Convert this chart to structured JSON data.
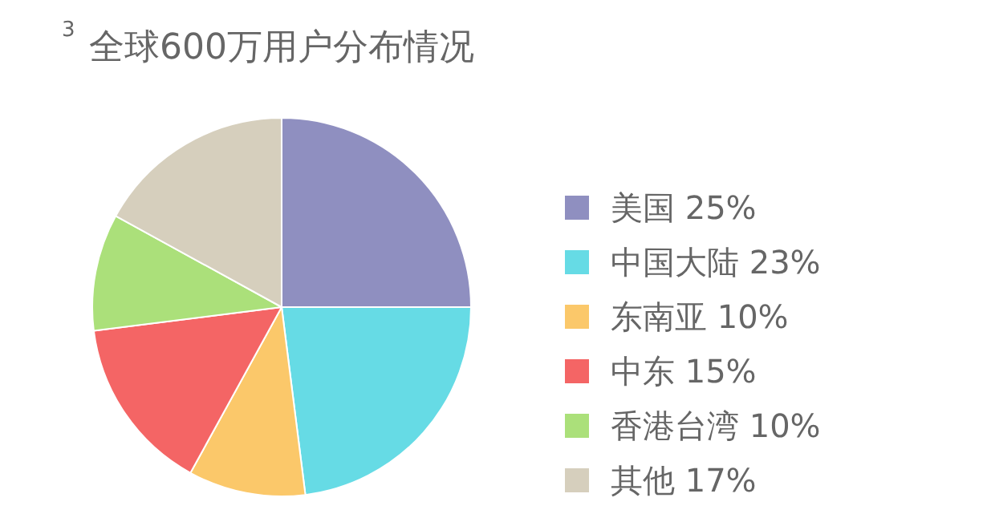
{
  "chart_data": {
    "type": "pie",
    "title": "全球600万用户分布情况",
    "annotations": [
      "3"
    ],
    "categories": [
      "美国",
      "中国大陆",
      "东南亚",
      "中东",
      "香港台湾",
      "其他"
    ],
    "values": [
      25,
      23,
      10,
      15,
      10,
      17
    ],
    "value_labels": [
      "25%",
      "23%",
      "10%",
      "15%",
      "10%",
      "17%"
    ],
    "colors": [
      "#8f8fc0",
      "#66dbe5",
      "#fbc86a",
      "#f46565",
      "#abe07a",
      "#d6cfbd"
    ],
    "legend": "right"
  }
}
